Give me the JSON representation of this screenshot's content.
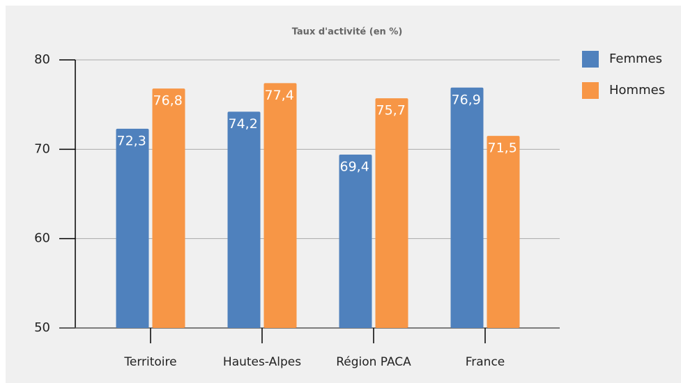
{
  "chart_data": {
    "type": "bar",
    "title": "Taux  d'activité (en %)",
    "categories": [
      "Territoire",
      "Hautes-Alpes",
      "Région PACA",
      "France"
    ],
    "series": [
      {
        "name": "Femmes",
        "color": "#4f81bd",
        "values": [
          72.3,
          74.2,
          69.4,
          76.9
        ],
        "value_labels": [
          "72,3",
          "74,2",
          "69,4",
          "76,9"
        ]
      },
      {
        "name": "Hommes",
        "color": "#f79646",
        "values": [
          76.8,
          77.4,
          75.7,
          71.5
        ],
        "value_labels": [
          "76,8",
          "77,4",
          "75,7",
          "71,5"
        ]
      }
    ],
    "ylim": [
      50,
      80
    ],
    "yticks": [
      50,
      60,
      70,
      80
    ],
    "grid": true,
    "legend": "right"
  }
}
